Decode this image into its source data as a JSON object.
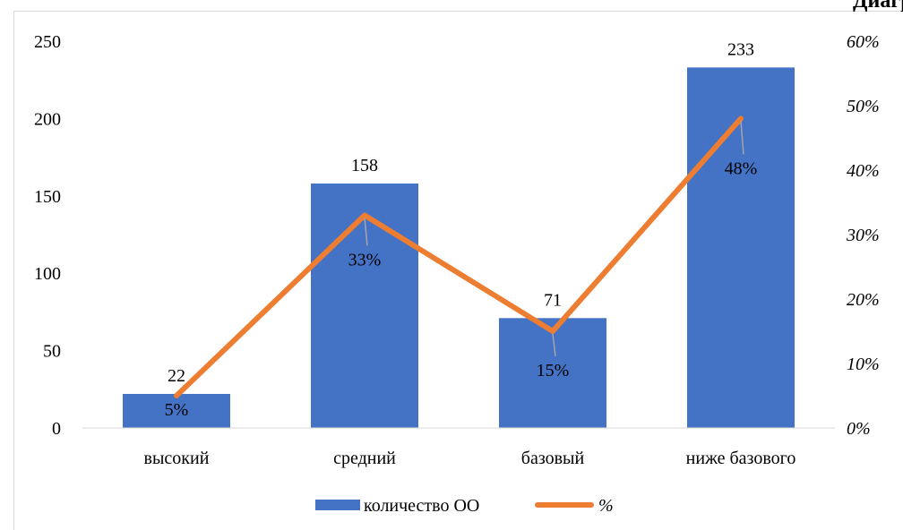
{
  "chart_data": {
    "type": "bar",
    "title": "Диаграмма",
    "categories": [
      "высокий",
      "средний",
      "базовый",
      "ниже базового"
    ],
    "series": [
      {
        "name": "количество ОО",
        "kind": "bar",
        "axis": "left",
        "color": "#4472c4",
        "values": [
          22,
          158,
          71,
          233
        ],
        "labels": [
          "22",
          "158",
          "71",
          "233"
        ]
      },
      {
        "name": "%",
        "kind": "line",
        "axis": "right",
        "color": "#ed7d31",
        "values": [
          5,
          33,
          15,
          48
        ],
        "labels": [
          "5%",
          "33%",
          "15%",
          "48%"
        ]
      }
    ],
    "y_left": {
      "min": 0,
      "max": 250,
      "ticks": [
        "0",
        "50",
        "100",
        "150",
        "200",
        "250"
      ]
    },
    "y_right": {
      "min": 0,
      "max": 60,
      "unit": "%",
      "ticks": [
        "0%",
        "10%",
        "20%",
        "30%",
        "40%",
        "50%",
        "60%"
      ]
    },
    "grid": false,
    "legend_position": "bottom"
  }
}
